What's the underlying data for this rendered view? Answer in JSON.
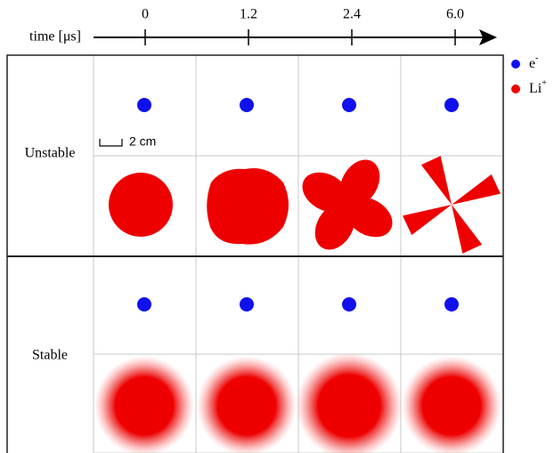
{
  "time_axis": {
    "label": "time [μs]",
    "ticks": [
      "0",
      "1.2",
      "2.4",
      "6.0"
    ]
  },
  "rows": [
    {
      "label": "Unstable"
    },
    {
      "label": "Stable"
    }
  ],
  "legend": [
    {
      "label": "e",
      "sup": "-"
    },
    {
      "label": "Li",
      "sup": "+"
    }
  ],
  "scale_bar": "2 cm"
}
